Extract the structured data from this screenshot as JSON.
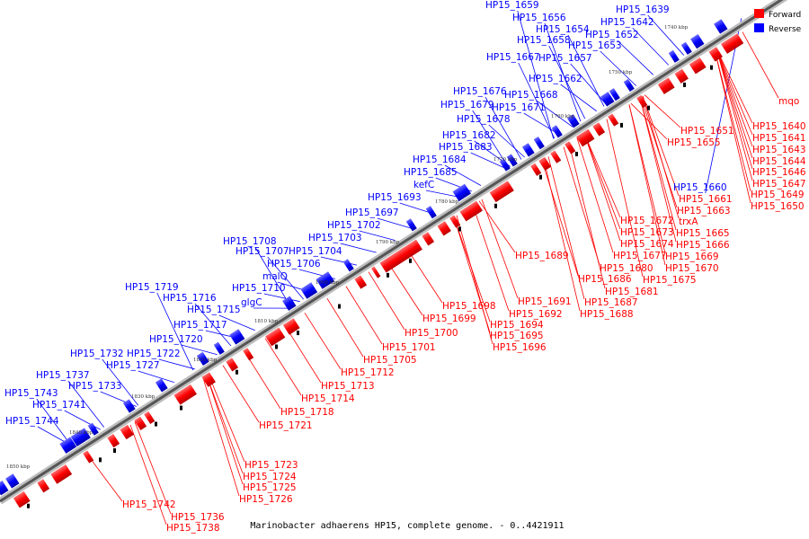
{
  "caption": "Marinobacter adhaerens HP15, complete genome. - 0..4421911",
  "legend": [
    {
      "label": "Forward",
      "color": "#ff0000"
    },
    {
      "label": "Reverse",
      "color": "#0000ff"
    }
  ],
  "colors": {
    "forward": "#ff0000",
    "reverse": "#0000ff",
    "backbone": "#666666"
  },
  "ticks": [
    "1740 kbp",
    "1750 kbp",
    "1760 kbp",
    "1770 kbp",
    "1780 kbp",
    "1790 kbp",
    "1800 kbp",
    "1810 kbp",
    "1820 kbp",
    "1830 kbp",
    "1840 kbp",
    "1850 kbp"
  ],
  "reverse_labels": [
    "HP15_1659",
    "HP15_1639",
    "HP15_1656",
    "HP15_1642",
    "HP15_1654",
    "HP15_1652",
    "HP15_1658",
    "HP15_1653",
    "HP15_1667",
    "HP15_1657",
    "HP15_1662",
    "HP15_1676",
    "HP15_1668",
    "HP15_1679",
    "HP15_1671",
    "HP15_1678",
    "HP15_1682",
    "HP15_1683",
    "HP15_1684",
    "HP15_1685",
    "kefC",
    "HP15_1693",
    "HP15_1697",
    "HP15_1702",
    "HP15_1703",
    "HP15_1708",
    "HP15_1707",
    "HP15_1704",
    "HP15_1706",
    "malQ",
    "HP15_1710",
    "glgC",
    "HP15_1719",
    "HP15_1716",
    "HP15_1715",
    "HP15_1717",
    "HP15_1720",
    "HP15_1732",
    "HP15_1722",
    "HP15_1727",
    "HP15_1737",
    "HP15_1733",
    "HP15_1743",
    "HP15_1741",
    "HP15_1744",
    "HP15_1660"
  ],
  "forward_labels": [
    "mqo",
    "HP15_1640",
    "HP15_1651",
    "HP15_1641",
    "HP15_1655",
    "HP15_1643",
    "HP15_1644",
    "HP15_1646",
    "HP15_1647",
    "HP15_1649",
    "HP15_1650",
    "HP15_1661",
    "HP15_1663",
    "trxA",
    "HP15_1672",
    "HP15_1665",
    "HP15_1673",
    "HP15_1666",
    "HP15_1674",
    "HP15_1677",
    "HP15_1669",
    "HP15_1689",
    "HP15_1680",
    "HP15_1670",
    "HP15_1686",
    "HP15_1675",
    "HP15_1681",
    "HP15_1687",
    "HP15_1691",
    "HP15_1688",
    "HP15_1698",
    "HP15_1692",
    "HP15_1699",
    "HP15_1694",
    "HP15_1700",
    "HP15_1695",
    "HP15_1696",
    "HP15_1701",
    "HP15_1705",
    "HP15_1712",
    "HP15_1713",
    "HP15_1714",
    "HP15_1718",
    "HP15_1721",
    "HP15_1723",
    "HP15_1724",
    "HP15_1725",
    "HP15_1726",
    "HP15_1742",
    "HP15_1736",
    "HP15_1738"
  ]
}
